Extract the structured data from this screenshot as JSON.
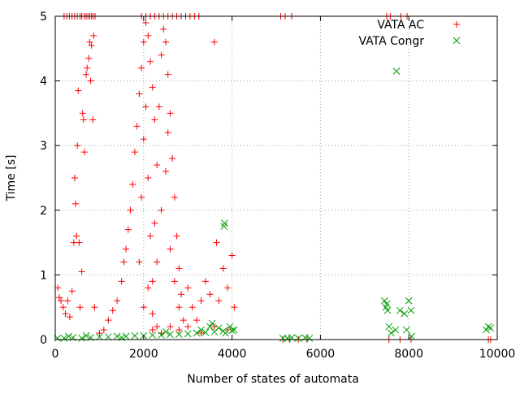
{
  "chart_data": {
    "type": "scatter",
    "xlabel": "Number of states of automata",
    "ylabel": "Time [s]",
    "xlim": [
      0,
      10000
    ],
    "ylim": [
      0,
      5
    ],
    "xticks": [
      0,
      2000,
      4000,
      6000,
      8000,
      10000
    ],
    "yticks": [
      0,
      1,
      2,
      3,
      4,
      5
    ],
    "grid": true,
    "legend_position": "top-right",
    "colors": {
      "vata_ac": "#ff0000",
      "vata_congr": "#00a000"
    },
    "series": [
      {
        "name": "VATA AC",
        "marker": "plus",
        "points": [
          [
            200,
            5.0
          ],
          [
            260,
            5.0
          ],
          [
            320,
            5.0
          ],
          [
            380,
            5.0
          ],
          [
            440,
            5.0
          ],
          [
            500,
            5.0
          ],
          [
            560,
            5.0
          ],
          [
            600,
            5.0
          ],
          [
            660,
            5.0
          ],
          [
            700,
            5.0
          ],
          [
            740,
            5.0
          ],
          [
            780,
            5.0
          ],
          [
            820,
            5.0
          ],
          [
            860,
            5.0
          ],
          [
            900,
            5.0
          ],
          [
            1950,
            5.0
          ],
          [
            2050,
            5.0
          ],
          [
            2150,
            5.0
          ],
          [
            2250,
            5.0
          ],
          [
            2350,
            5.0
          ],
          [
            2450,
            5.0
          ],
          [
            2550,
            5.0
          ],
          [
            2650,
            5.0
          ],
          [
            2750,
            5.0
          ],
          [
            2850,
            5.0
          ],
          [
            2950,
            5.0
          ],
          [
            3050,
            5.0
          ],
          [
            3150,
            5.0
          ],
          [
            3250,
            5.0
          ],
          [
            5100,
            5.0
          ],
          [
            5200,
            5.0
          ],
          [
            5350,
            5.0
          ],
          [
            7500,
            5.0
          ],
          [
            7580,
            5.0
          ],
          [
            7820,
            5.0
          ],
          [
            7960,
            5.0
          ],
          [
            60,
            0.8
          ],
          [
            90,
            0.65
          ],
          [
            130,
            0.6
          ],
          [
            180,
            0.5
          ],
          [
            230,
            0.4
          ],
          [
            280,
            0.6
          ],
          [
            330,
            0.35
          ],
          [
            380,
            0.75
          ],
          [
            420,
            1.5
          ],
          [
            440,
            2.5
          ],
          [
            460,
            2.1
          ],
          [
            480,
            1.6
          ],
          [
            500,
            3.0
          ],
          [
            520,
            3.85
          ],
          [
            540,
            1.5
          ],
          [
            560,
            0.5
          ],
          [
            600,
            1.05
          ],
          [
            620,
            3.5
          ],
          [
            640,
            3.4
          ],
          [
            660,
            2.9
          ],
          [
            700,
            4.1
          ],
          [
            720,
            4.2
          ],
          [
            760,
            4.35
          ],
          [
            780,
            4.6
          ],
          [
            800,
            4.0
          ],
          [
            820,
            4.55
          ],
          [
            850,
            3.4
          ],
          [
            870,
            4.7
          ],
          [
            890,
            0.5
          ],
          [
            1000,
            0.1
          ],
          [
            1100,
            0.15
          ],
          [
            1200,
            0.3
          ],
          [
            1300,
            0.45
          ],
          [
            1400,
            0.6
          ],
          [
            1500,
            0.9
          ],
          [
            1550,
            1.2
          ],
          [
            1600,
            1.4
          ],
          [
            1650,
            1.7
          ],
          [
            1700,
            2.0
          ],
          [
            1750,
            2.4
          ],
          [
            1800,
            2.9
          ],
          [
            1850,
            3.3
          ],
          [
            1900,
            3.8
          ],
          [
            1950,
            4.2
          ],
          [
            2000,
            4.6
          ],
          [
            2050,
            4.9
          ],
          [
            2100,
            4.7
          ],
          [
            2150,
            4.3
          ],
          [
            2200,
            3.9
          ],
          [
            2250,
            3.4
          ],
          [
            1900,
            1.2
          ],
          [
            1950,
            2.2
          ],
          [
            2000,
            3.1
          ],
          [
            2050,
            3.6
          ],
          [
            2100,
            2.5
          ],
          [
            2150,
            1.6
          ],
          [
            2200,
            0.9
          ],
          [
            2250,
            1.8
          ],
          [
            2300,
            2.7
          ],
          [
            2350,
            3.6
          ],
          [
            2400,
            4.4
          ],
          [
            2450,
            4.8
          ],
          [
            2500,
            4.6
          ],
          [
            2550,
            4.1
          ],
          [
            2600,
            3.5
          ],
          [
            2650,
            2.8
          ],
          [
            2700,
            2.2
          ],
          [
            2750,
            1.6
          ],
          [
            2800,
            1.1
          ],
          [
            2850,
            0.7
          ],
          [
            2000,
            0.5
          ],
          [
            2100,
            0.8
          ],
          [
            2200,
            0.4
          ],
          [
            2300,
            1.2
          ],
          [
            2400,
            2.0
          ],
          [
            2500,
            2.6
          ],
          [
            2550,
            3.2
          ],
          [
            2600,
            1.4
          ],
          [
            2700,
            0.9
          ],
          [
            2800,
            0.5
          ],
          [
            2900,
            0.3
          ],
          [
            3000,
            0.8
          ],
          [
            3100,
            0.5
          ],
          [
            3200,
            0.3
          ],
          [
            3300,
            0.6
          ],
          [
            3400,
            0.9
          ],
          [
            3500,
            0.7
          ],
          [
            3600,
            4.6
          ],
          [
            3650,
            1.5
          ],
          [
            3700,
            0.6
          ],
          [
            3800,
            1.1
          ],
          [
            3900,
            0.8
          ],
          [
            4000,
            1.3
          ],
          [
            4050,
            0.5
          ],
          [
            2200,
            0.15
          ],
          [
            2300,
            0.2
          ],
          [
            2400,
            0.1
          ],
          [
            2600,
            0.2
          ],
          [
            2800,
            0.15
          ],
          [
            3000,
            0.2
          ],
          [
            3300,
            0.1
          ],
          [
            3600,
            0.2
          ],
          [
            3900,
            0.15
          ],
          [
            5150,
            0.0
          ],
          [
            5300,
            0.0
          ],
          [
            5500,
            0.0
          ],
          [
            5700,
            0.0
          ],
          [
            7550,
            0.0
          ],
          [
            7800,
            0.0
          ],
          [
            8050,
            0.0
          ],
          [
            9800,
            0.0
          ],
          [
            9850,
            0.0
          ]
        ]
      },
      {
        "name": "VATA Congr",
        "marker": "cross",
        "points": [
          [
            50,
            0.02
          ],
          [
            200,
            0.02
          ],
          [
            400,
            0.03
          ],
          [
            600,
            0.02
          ],
          [
            800,
            0.03
          ],
          [
            1000,
            0.04
          ],
          [
            1200,
            0.04
          ],
          [
            1400,
            0.05
          ],
          [
            1600,
            0.05
          ],
          [
            1800,
            0.06
          ],
          [
            2000,
            0.06
          ],
          [
            2200,
            0.07
          ],
          [
            2400,
            0.07
          ],
          [
            2600,
            0.08
          ],
          [
            2800,
            0.08
          ],
          [
            3000,
            0.09
          ],
          [
            3200,
            0.1
          ],
          [
            3400,
            0.11
          ],
          [
            3600,
            0.12
          ],
          [
            3800,
            0.13
          ],
          [
            4000,
            0.14
          ],
          [
            4050,
            0.15
          ],
          [
            300,
            0.05
          ],
          [
            700,
            0.06
          ],
          [
            1500,
            0.03
          ],
          [
            2500,
            0.12
          ],
          [
            3300,
            0.15
          ],
          [
            3500,
            0.2
          ],
          [
            3550,
            0.25
          ],
          [
            3700,
            0.18
          ],
          [
            3850,
            0.1
          ],
          [
            3950,
            0.2
          ],
          [
            3820,
            1.75
          ],
          [
            3830,
            1.8
          ],
          [
            5150,
            0.02
          ],
          [
            5250,
            0.02
          ],
          [
            5350,
            0.03
          ],
          [
            5500,
            0.02
          ],
          [
            5650,
            0.03
          ],
          [
            5750,
            0.02
          ],
          [
            7450,
            0.6
          ],
          [
            7480,
            0.5
          ],
          [
            7500,
            0.55
          ],
          [
            7520,
            0.45
          ],
          [
            7550,
            0.2
          ],
          [
            7600,
            0.1
          ],
          [
            7700,
            0.15
          ],
          [
            7720,
            4.15
          ],
          [
            7800,
            0.45
          ],
          [
            7900,
            0.4
          ],
          [
            7950,
            0.15
          ],
          [
            8000,
            0.6
          ],
          [
            8050,
            0.45
          ],
          [
            8060,
            0.05
          ],
          [
            9750,
            0.15
          ],
          [
            9800,
            0.2
          ],
          [
            9850,
            0.18
          ]
        ]
      }
    ]
  }
}
